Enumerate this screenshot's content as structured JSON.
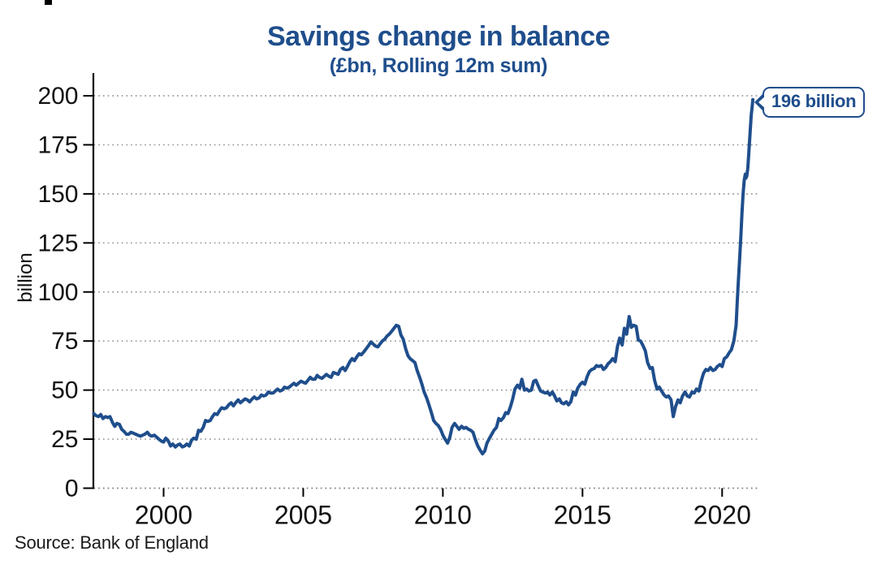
{
  "chart_data": {
    "type": "line",
    "title": "Savings change in balance",
    "subtitle": "(£bn, Rolling 12m sum)",
    "ylabel": "billion",
    "xlabel": "",
    "source": "Source: Bank of England",
    "annotation": "196 billion",
    "legend": "none",
    "grid": "horizontal-dotted",
    "x_tick_labels": [
      2000,
      2005,
      2010,
      2015,
      2020
    ],
    "y_tick_labels": [
      0,
      25,
      50,
      75,
      100,
      125,
      150,
      175,
      200
    ],
    "xlim": [
      1997.5,
      2021.3
    ],
    "ylim": [
      0,
      200
    ],
    "accent_color": "#1f4e8c",
    "series": [
      {
        "name": "Savings change in balance (£bn, rolling 12m sum)",
        "color": "#1f4e8c",
        "points": [
          [
            1997.5,
            38
          ],
          [
            1997.58,
            37
          ],
          [
            1997.67,
            36.5
          ],
          [
            1997.75,
            37.5
          ],
          [
            1997.83,
            35.5
          ],
          [
            1997.92,
            36.5
          ],
          [
            1998.0,
            36
          ],
          [
            1998.08,
            36.5
          ],
          [
            1998.17,
            33.5
          ],
          [
            1998.25,
            31.5
          ],
          [
            1998.33,
            33
          ],
          [
            1998.42,
            32.5
          ],
          [
            1998.5,
            30
          ],
          [
            1998.58,
            29
          ],
          [
            1998.67,
            27.5
          ],
          [
            1998.75,
            27.5
          ],
          [
            1998.83,
            28.5
          ],
          [
            1998.92,
            28
          ],
          [
            1999.0,
            27.5
          ],
          [
            1999.08,
            27
          ],
          [
            1999.17,
            26.5
          ],
          [
            1999.25,
            27
          ],
          [
            1999.33,
            27.5
          ],
          [
            1999.42,
            28.5
          ],
          [
            1999.5,
            27
          ],
          [
            1999.58,
            26.5
          ],
          [
            1999.67,
            27
          ],
          [
            1999.75,
            26
          ],
          [
            1999.83,
            25
          ],
          [
            1999.92,
            24
          ],
          [
            2000.0,
            23.5
          ],
          [
            2000.08,
            25.5
          ],
          [
            2000.17,
            24
          ],
          [
            2000.25,
            21.5
          ],
          [
            2000.33,
            22.5
          ],
          [
            2000.42,
            21
          ],
          [
            2000.5,
            22
          ],
          [
            2000.58,
            22.5
          ],
          [
            2000.67,
            21
          ],
          [
            2000.75,
            21.5
          ],
          [
            2000.83,
            22.5
          ],
          [
            2000.92,
            21.5
          ],
          [
            2001.0,
            24.5
          ],
          [
            2001.08,
            25.5
          ],
          [
            2001.17,
            25
          ],
          [
            2001.25,
            29.5
          ],
          [
            2001.33,
            29
          ],
          [
            2001.42,
            31
          ],
          [
            2001.5,
            34.5
          ],
          [
            2001.58,
            34
          ],
          [
            2001.67,
            34.5
          ],
          [
            2001.75,
            36.5
          ],
          [
            2001.83,
            38
          ],
          [
            2001.92,
            37.5
          ],
          [
            2002.0,
            39.5
          ],
          [
            2002.08,
            41
          ],
          [
            2002.17,
            40.5
          ],
          [
            2002.25,
            41
          ],
          [
            2002.33,
            42.5
          ],
          [
            2002.42,
            43.5
          ],
          [
            2002.5,
            42
          ],
          [
            2002.58,
            43.5
          ],
          [
            2002.67,
            45
          ],
          [
            2002.75,
            43.5
          ],
          [
            2002.83,
            44.5
          ],
          [
            2002.92,
            45.5
          ],
          [
            2003.0,
            45
          ],
          [
            2003.08,
            44
          ],
          [
            2003.17,
            45.5
          ],
          [
            2003.25,
            46.5
          ],
          [
            2003.33,
            45.5
          ],
          [
            2003.42,
            46
          ],
          [
            2003.5,
            47.5
          ],
          [
            2003.58,
            47
          ],
          [
            2003.67,
            47.5
          ],
          [
            2003.75,
            49
          ],
          [
            2003.83,
            48.5
          ],
          [
            2003.92,
            48.5
          ],
          [
            2004.0,
            49.5
          ],
          [
            2004.08,
            50.5
          ],
          [
            2004.17,
            49.5
          ],
          [
            2004.25,
            50
          ],
          [
            2004.33,
            51.5
          ],
          [
            2004.42,
            51
          ],
          [
            2004.5,
            51.5
          ],
          [
            2004.58,
            52.5
          ],
          [
            2004.67,
            53.5
          ],
          [
            2004.75,
            52.5
          ],
          [
            2004.83,
            53.5
          ],
          [
            2004.92,
            54.5
          ],
          [
            2005.0,
            54
          ],
          [
            2005.08,
            53.5
          ],
          [
            2005.17,
            55
          ],
          [
            2005.25,
            56.5
          ],
          [
            2005.33,
            55.5
          ],
          [
            2005.42,
            55.5
          ],
          [
            2005.5,
            57.5
          ],
          [
            2005.58,
            56.5
          ],
          [
            2005.67,
            56
          ],
          [
            2005.75,
            57
          ],
          [
            2005.83,
            58
          ],
          [
            2005.92,
            57
          ],
          [
            2006.0,
            56.5
          ],
          [
            2006.08,
            59
          ],
          [
            2006.17,
            58.5
          ],
          [
            2006.25,
            58
          ],
          [
            2006.33,
            60.5
          ],
          [
            2006.42,
            61.5
          ],
          [
            2006.5,
            60
          ],
          [
            2006.58,
            62
          ],
          [
            2006.67,
            64.5
          ],
          [
            2006.75,
            66
          ],
          [
            2006.83,
            65
          ],
          [
            2006.92,
            67
          ],
          [
            2007.0,
            68.5
          ],
          [
            2007.08,
            68
          ],
          [
            2007.17,
            69.5
          ],
          [
            2007.25,
            71
          ],
          [
            2007.33,
            72.5
          ],
          [
            2007.42,
            74.5
          ],
          [
            2007.5,
            73.5
          ],
          [
            2007.58,
            72.5
          ],
          [
            2007.67,
            72
          ],
          [
            2007.75,
            73.5
          ],
          [
            2007.83,
            75
          ],
          [
            2007.92,
            76
          ],
          [
            2008.0,
            77.5
          ],
          [
            2008.08,
            78.5
          ],
          [
            2008.17,
            80
          ],
          [
            2008.25,
            81.5
          ],
          [
            2008.33,
            83
          ],
          [
            2008.42,
            82.5
          ],
          [
            2008.5,
            78
          ],
          [
            2008.58,
            76
          ],
          [
            2008.67,
            71
          ],
          [
            2008.75,
            67.5
          ],
          [
            2008.83,
            66
          ],
          [
            2008.92,
            65
          ],
          [
            2009.0,
            64
          ],
          [
            2009.08,
            60
          ],
          [
            2009.17,
            56.5
          ],
          [
            2009.25,
            53
          ],
          [
            2009.33,
            49
          ],
          [
            2009.42,
            46
          ],
          [
            2009.5,
            42.5
          ],
          [
            2009.58,
            39
          ],
          [
            2009.67,
            34.5
          ],
          [
            2009.75,
            33
          ],
          [
            2009.83,
            32
          ],
          [
            2009.92,
            30
          ],
          [
            2010.0,
            27
          ],
          [
            2010.08,
            25
          ],
          [
            2010.17,
            23
          ],
          [
            2010.25,
            26
          ],
          [
            2010.33,
            31
          ],
          [
            2010.42,
            33
          ],
          [
            2010.5,
            31.5
          ],
          [
            2010.58,
            30
          ],
          [
            2010.67,
            31.5
          ],
          [
            2010.75,
            30.5
          ],
          [
            2010.83,
            31
          ],
          [
            2010.92,
            30
          ],
          [
            2011.0,
            29.5
          ],
          [
            2011.08,
            28.5
          ],
          [
            2011.17,
            24.5
          ],
          [
            2011.25,
            21.5
          ],
          [
            2011.33,
            19.5
          ],
          [
            2011.42,
            17.5
          ],
          [
            2011.5,
            19
          ],
          [
            2011.58,
            23
          ],
          [
            2011.67,
            25.5
          ],
          [
            2011.75,
            27.5
          ],
          [
            2011.83,
            29.5
          ],
          [
            2011.92,
            31
          ],
          [
            2012.0,
            35.5
          ],
          [
            2012.08,
            34.5
          ],
          [
            2012.17,
            36
          ],
          [
            2012.25,
            38.5
          ],
          [
            2012.33,
            38
          ],
          [
            2012.42,
            41.5
          ],
          [
            2012.5,
            45.5
          ],
          [
            2012.58,
            50.5
          ],
          [
            2012.67,
            52.5
          ],
          [
            2012.75,
            51
          ],
          [
            2012.83,
            55.5
          ],
          [
            2012.92,
            50
          ],
          [
            2013.0,
            50.5
          ],
          [
            2013.08,
            49.5
          ],
          [
            2013.17,
            50
          ],
          [
            2013.25,
            54.5
          ],
          [
            2013.33,
            55
          ],
          [
            2013.42,
            52
          ],
          [
            2013.5,
            49.5
          ],
          [
            2013.58,
            49
          ],
          [
            2013.67,
            48.5
          ],
          [
            2013.75,
            49
          ],
          [
            2013.83,
            47.5
          ],
          [
            2013.92,
            49
          ],
          [
            2014.0,
            47
          ],
          [
            2014.08,
            44.5
          ],
          [
            2014.17,
            45.5
          ],
          [
            2014.25,
            43.5
          ],
          [
            2014.33,
            43
          ],
          [
            2014.42,
            44
          ],
          [
            2014.5,
            42.5
          ],
          [
            2014.58,
            44
          ],
          [
            2014.67,
            49
          ],
          [
            2014.75,
            47.5
          ],
          [
            2014.83,
            51
          ],
          [
            2014.92,
            53
          ],
          [
            2015.0,
            54
          ],
          [
            2015.08,
            53
          ],
          [
            2015.17,
            57
          ],
          [
            2015.25,
            59.5
          ],
          [
            2015.33,
            60.5
          ],
          [
            2015.42,
            61
          ],
          [
            2015.5,
            62.5
          ],
          [
            2015.58,
            62
          ],
          [
            2015.67,
            62.5
          ],
          [
            2015.75,
            60.5
          ],
          [
            2015.83,
            61.5
          ],
          [
            2015.92,
            63.5
          ],
          [
            2016.0,
            64.5
          ],
          [
            2016.08,
            66
          ],
          [
            2016.17,
            64.5
          ],
          [
            2016.25,
            72
          ],
          [
            2016.33,
            76.5
          ],
          [
            2016.42,
            73
          ],
          [
            2016.5,
            81.5
          ],
          [
            2016.58,
            78.5
          ],
          [
            2016.67,
            87.5
          ],
          [
            2016.75,
            82
          ],
          [
            2016.83,
            83
          ],
          [
            2016.92,
            82.5
          ],
          [
            2017.0,
            75.5
          ],
          [
            2017.08,
            75
          ],
          [
            2017.17,
            72.5
          ],
          [
            2017.25,
            70
          ],
          [
            2017.33,
            64
          ],
          [
            2017.42,
            61
          ],
          [
            2017.5,
            61.5
          ],
          [
            2017.58,
            55
          ],
          [
            2017.67,
            50.5
          ],
          [
            2017.75,
            51.5
          ],
          [
            2017.83,
            49.5
          ],
          [
            2017.92,
            47.5
          ],
          [
            2018.0,
            46.5
          ],
          [
            2018.08,
            47
          ],
          [
            2018.17,
            45
          ],
          [
            2018.25,
            36.5
          ],
          [
            2018.33,
            41.5
          ],
          [
            2018.42,
            45
          ],
          [
            2018.5,
            43.5
          ],
          [
            2018.58,
            47
          ],
          [
            2018.67,
            49
          ],
          [
            2018.75,
            47
          ],
          [
            2018.83,
            46.5
          ],
          [
            2018.92,
            49
          ],
          [
            2019.0,
            48.5
          ],
          [
            2019.08,
            50.5
          ],
          [
            2019.17,
            49.5
          ],
          [
            2019.25,
            54.5
          ],
          [
            2019.33,
            58.5
          ],
          [
            2019.42,
            60.5
          ],
          [
            2019.5,
            60
          ],
          [
            2019.58,
            61.5
          ],
          [
            2019.67,
            60
          ],
          [
            2019.75,
            60.5
          ],
          [
            2019.83,
            62
          ],
          [
            2019.92,
            63
          ],
          [
            2020.0,
            62
          ],
          [
            2020.08,
            66
          ],
          [
            2020.17,
            67
          ],
          [
            2020.25,
            69
          ],
          [
            2020.33,
            70.5
          ],
          [
            2020.42,
            75
          ],
          [
            2020.5,
            83
          ],
          [
            2020.54,
            95
          ],
          [
            2020.58,
            105
          ],
          [
            2020.63,
            118
          ],
          [
            2020.67,
            128
          ],
          [
            2020.71,
            140
          ],
          [
            2020.75,
            150
          ],
          [
            2020.79,
            157
          ],
          [
            2020.83,
            160
          ],
          [
            2020.85,
            158
          ],
          [
            2020.88,
            159
          ],
          [
            2020.92,
            163
          ],
          [
            2020.96,
            172
          ],
          [
            2021.0,
            181
          ],
          [
            2021.04,
            190
          ],
          [
            2021.08,
            195
          ],
          [
            2021.1,
            198
          ]
        ]
      }
    ]
  }
}
